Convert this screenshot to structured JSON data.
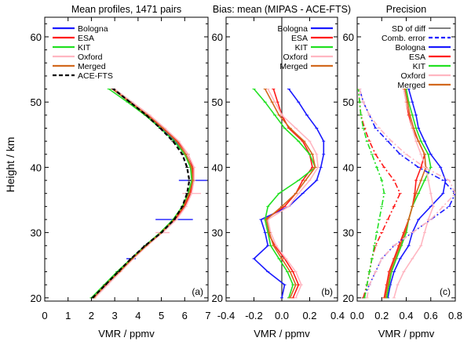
{
  "figure": {
    "y_axis_label": "Height / km"
  },
  "colors": {
    "Bologna": "#1a1aff",
    "ESA": "#ff1a1a",
    "KIT": "#22e022",
    "Oxford": "#ffb6c1",
    "Merged": "#d2691e",
    "ACE-FTS": "#000000"
  },
  "chart_data": [
    {
      "id": "a",
      "type": "line",
      "title": "Mean profiles, 1471 pairs",
      "xlabel": "VMR / ppmv",
      "ylabel": "Height / km",
      "panel_tag": "(a)",
      "xlim": [
        0,
        7
      ],
      "ylim": [
        19.5,
        63
      ],
      "xticks": [
        0,
        1,
        2,
        3,
        4,
        5,
        6,
        7
      ],
      "yticks": [
        20,
        30,
        40,
        50,
        60
      ],
      "legend": [
        "Bologna",
        "ESA",
        "KIT",
        "Oxford",
        "Merged",
        "ACE-FTS"
      ],
      "legend_position": "top-left",
      "y": [
        20,
        22,
        24,
        26,
        28,
        30,
        32,
        34,
        36,
        38,
        40,
        42,
        44,
        46,
        48,
        50,
        52
      ],
      "series": [
        {
          "name": "Bologna",
          "style": "solid",
          "x": [
            2.05,
            2.6,
            3.15,
            3.7,
            4.3,
            5.0,
            5.55,
            5.95,
            6.2,
            6.35,
            6.3,
            6.05,
            5.6,
            5.0,
            4.35,
            3.65,
            2.9
          ],
          "err": [
            0,
            0,
            0,
            0.2,
            0,
            0,
            0.8,
            0,
            0,
            0.6,
            0,
            0,
            0,
            0,
            0,
            0,
            0
          ]
        },
        {
          "name": "ESA",
          "style": "solid",
          "x": [
            2.1,
            2.65,
            3.2,
            3.75,
            4.35,
            5.0,
            5.6,
            6.0,
            6.25,
            6.4,
            6.35,
            6.15,
            5.7,
            5.1,
            4.45,
            3.7,
            2.95
          ]
        },
        {
          "name": "KIT",
          "style": "solid",
          "x": [
            2.0,
            2.55,
            3.1,
            3.7,
            4.3,
            4.95,
            5.5,
            5.9,
            6.15,
            6.3,
            6.25,
            6.0,
            5.55,
            4.95,
            4.3,
            3.55,
            2.75
          ]
        },
        {
          "name": "Oxford",
          "style": "solid",
          "x": [
            2.15,
            2.7,
            3.25,
            3.8,
            4.4,
            5.05,
            5.65,
            6.05,
            6.3,
            6.4,
            6.4,
            6.15,
            5.75,
            5.15,
            4.5,
            3.75,
            3.0
          ],
          "err": [
            0,
            0,
            0,
            0,
            0,
            0.3,
            0,
            0,
            0.4,
            0,
            0,
            0,
            0,
            0,
            0,
            0,
            0
          ]
        },
        {
          "name": "Merged",
          "style": "solid",
          "x": [
            2.1,
            2.6,
            3.2,
            3.75,
            4.35,
            5.0,
            5.55,
            5.95,
            6.2,
            6.35,
            6.3,
            6.05,
            5.65,
            5.05,
            4.4,
            3.65,
            2.9
          ]
        },
        {
          "name": "ACE-FTS",
          "style": "dashed",
          "x": [
            2.05,
            2.6,
            3.15,
            3.7,
            4.3,
            5.0,
            5.55,
            5.9,
            6.1,
            6.2,
            6.1,
            5.9,
            5.5,
            4.95,
            4.35,
            3.65,
            2.95
          ]
        }
      ]
    },
    {
      "id": "b",
      "type": "line",
      "title": "Bias: mean (MIPAS - ACE-FTS)",
      "xlabel": "VMR / ppmv",
      "panel_tag": "(b)",
      "xlim": [
        -0.4,
        0.4
      ],
      "ylim": [
        19.5,
        63
      ],
      "xticks": [
        -0.4,
        -0.2,
        0.0,
        0.2,
        0.4
      ],
      "xtick_labels": [
        "-0.4",
        "-0.2",
        "0.0",
        "0.2",
        "0.4"
      ],
      "yticks": [
        20,
        30,
        40,
        50,
        60
      ],
      "reference_line_x": 0,
      "legend": [
        "Bologna",
        "ESA",
        "KIT",
        "Oxford",
        "Merged"
      ],
      "legend_position": "top-right",
      "y": [
        20,
        22,
        24,
        26,
        28,
        30,
        32,
        34,
        36,
        38,
        40,
        42,
        44,
        46,
        48,
        50,
        52
      ],
      "series": [
        {
          "name": "Bologna",
          "x": [
            0.0,
            0.02,
            -0.1,
            -0.2,
            -0.1,
            -0.12,
            -0.15,
            0.05,
            0.15,
            0.25,
            0.28,
            0.3,
            0.3,
            0.25,
            0.18,
            0.12,
            0.05
          ]
        },
        {
          "name": "ESA",
          "x": [
            0.08,
            0.12,
            0.08,
            0.02,
            -0.05,
            -0.1,
            -0.12,
            0.02,
            0.1,
            0.15,
            0.22,
            0.2,
            0.15,
            0.05,
            0.0,
            -0.03,
            -0.06
          ]
        },
        {
          "name": "KIT",
          "x": [
            0.05,
            0.08,
            0.04,
            -0.02,
            -0.08,
            -0.1,
            -0.12,
            -0.1,
            -0.02,
            0.12,
            0.24,
            0.2,
            0.12,
            0.02,
            -0.05,
            -0.12,
            -0.2
          ]
        },
        {
          "name": "Oxford",
          "x": [
            0.1,
            0.14,
            0.1,
            0.03,
            -0.04,
            -0.08,
            -0.1,
            0.05,
            0.12,
            0.2,
            0.26,
            0.25,
            0.2,
            0.1,
            0.0,
            -0.05,
            -0.1
          ]
        },
        {
          "name": "Merged",
          "x": [
            0.06,
            0.1,
            0.06,
            0.0,
            -0.06,
            -0.09,
            -0.11,
            0.0,
            0.1,
            0.17,
            0.24,
            0.22,
            0.16,
            0.06,
            -0.02,
            -0.07,
            -0.12
          ]
        }
      ]
    },
    {
      "id": "c",
      "type": "line",
      "title": "Precision",
      "xlabel": "VMR / ppmv",
      "panel_tag": "(c)",
      "xlim": [
        0,
        0.8
      ],
      "ylim": [
        19.5,
        63
      ],
      "xticks": [
        0.0,
        0.2,
        0.4,
        0.6,
        0.8
      ],
      "xtick_labels": [
        "0.0",
        "0.2",
        "0.4",
        "0.6",
        "0.8"
      ],
      "yticks": [
        20,
        30,
        40,
        50,
        60
      ],
      "legend": [
        "SD of diff",
        "Comb. error",
        "Bologna",
        "ESA",
        "KIT",
        "Oxford",
        "Merged"
      ],
      "legend_styles": [
        "solid",
        "dashed",
        "solid",
        "solid",
        "solid",
        "solid",
        "solid"
      ],
      "legend_colors": [
        "#000000",
        "#1a1aff",
        "#1a1aff",
        "#ff1a1a",
        "#22e022",
        "#ffb6c1",
        "#d2691e"
      ],
      "legend_position": "top-left",
      "y": [
        20,
        22,
        24,
        26,
        28,
        30,
        32,
        34,
        36,
        38,
        40,
        42,
        44,
        46,
        48,
        50,
        52
      ],
      "series": [
        {
          "name": "Bologna",
          "style": "solid",
          "x": [
            0.25,
            0.27,
            0.3,
            0.35,
            0.42,
            0.45,
            0.5,
            0.6,
            0.7,
            0.72,
            0.68,
            0.6,
            0.55,
            0.5,
            0.48,
            0.45,
            0.42
          ]
        },
        {
          "name": "ESA",
          "style": "solid",
          "x": [
            0.22,
            0.24,
            0.26,
            0.3,
            0.34,
            0.38,
            0.42,
            0.45,
            0.47,
            0.48,
            0.52,
            0.55,
            0.5,
            0.45,
            0.42,
            0.4,
            0.38
          ]
        },
        {
          "name": "KIT",
          "style": "solid",
          "x": [
            0.24,
            0.26,
            0.28,
            0.32,
            0.36,
            0.4,
            0.42,
            0.45,
            0.5,
            0.55,
            0.6,
            0.58,
            0.52,
            0.48,
            0.45,
            0.42,
            0.4
          ]
        },
        {
          "name": "Oxford",
          "style": "solid",
          "x": [
            0.3,
            0.33,
            0.38,
            0.45,
            0.52,
            0.55,
            0.58,
            0.62,
            0.6,
            0.58,
            0.56,
            0.52,
            0.48,
            0.45,
            0.43,
            0.4,
            0.38
          ]
        },
        {
          "name": "Merged",
          "style": "solid",
          "x": [
            0.23,
            0.25,
            0.27,
            0.31,
            0.35,
            0.39,
            0.42,
            0.45,
            0.48,
            0.52,
            0.56,
            0.55,
            0.5,
            0.46,
            0.43,
            0.41,
            0.39
          ]
        },
        {
          "name": "Bologna",
          "style": "dashdot",
          "x": [
            0.05,
            0.1,
            0.15,
            0.2,
            0.3,
            0.45,
            0.6,
            0.75,
            0.8,
            0.7,
            0.5,
            0.35,
            0.25,
            0.15,
            0.1,
            0.05,
            0.02
          ]
        },
        {
          "name": "ESA",
          "style": "dashdot",
          "x": [
            0.05,
            0.08,
            0.1,
            0.12,
            0.15,
            0.2,
            0.25,
            0.3,
            0.35,
            0.3,
            0.22,
            0.15,
            0.1,
            0.06,
            0.03,
            0.02,
            0.01
          ]
        },
        {
          "name": "KIT",
          "style": "dashdot",
          "x": [
            0.06,
            0.08,
            0.1,
            0.12,
            0.14,
            0.16,
            0.18,
            0.2,
            0.22,
            0.2,
            0.16,
            0.12,
            0.08,
            0.05,
            0.03,
            0.02,
            0.01
          ]
        },
        {
          "name": "Oxford",
          "style": "dashdot",
          "x": [
            0.08,
            0.1,
            0.15,
            0.2,
            0.3,
            0.45,
            0.6,
            0.7,
            0.8,
            0.75,
            0.55,
            0.4,
            0.28,
            0.18,
            0.1,
            0.05,
            0.02
          ]
        }
      ]
    }
  ]
}
